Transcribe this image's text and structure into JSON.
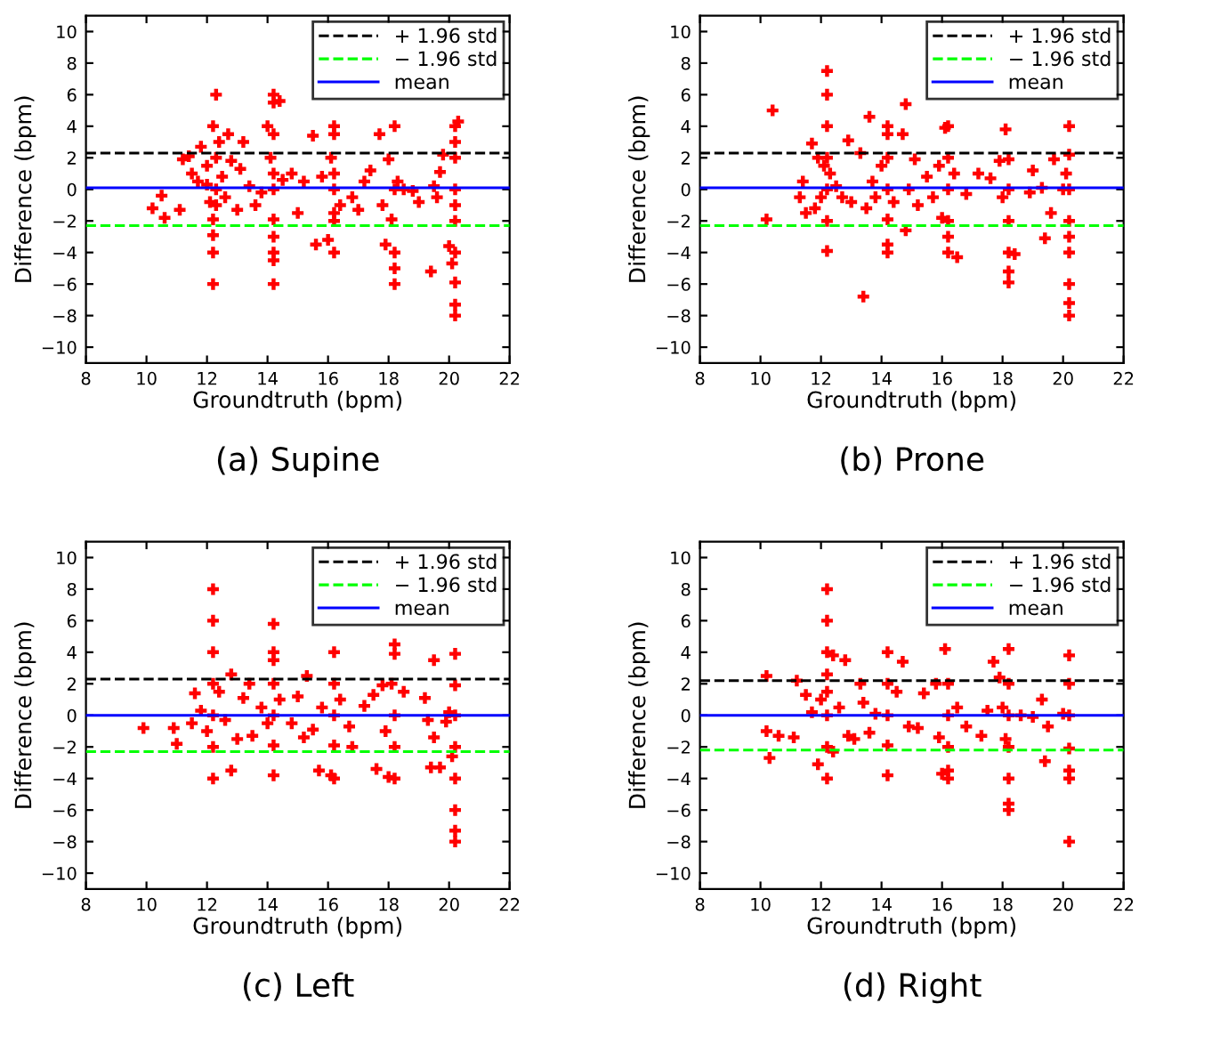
{
  "chart_data": [
    {
      "type": "scatter",
      "title": "(a) Supine",
      "xlabel": "Groundtruth (bpm)",
      "ylabel": "Difference (bpm)",
      "xlim": [
        8,
        22
      ],
      "ylim": [
        -11,
        11
      ],
      "xticks": [
        8,
        10,
        12,
        14,
        16,
        18,
        20,
        22
      ],
      "yticks": [
        -10,
        -8,
        -6,
        -4,
        -2,
        0,
        2,
        4,
        6,
        8,
        10
      ],
      "marker": "cross",
      "legend": "top right",
      "grid": false,
      "ref_lines": [
        {
          "axis": "y",
          "value": 2.3,
          "label": "+ 1.96 std",
          "color": "#000000",
          "line_style": "dashed"
        },
        {
          "axis": "y",
          "value": -2.3,
          "label": "− 1.96 std",
          "color": "#00ff00",
          "line_style": "dashed"
        },
        {
          "axis": "y",
          "value": 0.1,
          "label": "mean",
          "color": "#0000ff",
          "line_style": "solid"
        }
      ],
      "series": [
        {
          "color": "#ff0000",
          "x": [
            10.2,
            10.5,
            10.6,
            11.1,
            11.2,
            11.4,
            11.5,
            11.7,
            11.8,
            12.0,
            12.0,
            12.1,
            12.2,
            12.2,
            12.2,
            12.2,
            12.2,
            12.3,
            12.3,
            12.3,
            12.3,
            12.4,
            12.5,
            12.6,
            12.7,
            12.8,
            13.0,
            13.1,
            13.2,
            13.4,
            13.6,
            13.8,
            14.0,
            14.1,
            14.2,
            14.2,
            14.2,
            14.2,
            14.2,
            14.2,
            14.2,
            14.2,
            14.2,
            14.2,
            14.4,
            14.5,
            14.8,
            15.0,
            15.2,
            15.5,
            15.6,
            15.8,
            16.0,
            16.1,
            16.2,
            16.2,
            16.2,
            16.2,
            16.2,
            16.2,
            16.2,
            16.4,
            16.8,
            17.0,
            17.2,
            17.4,
            17.7,
            17.8,
            17.9,
            18.0,
            18.1,
            18.2,
            18.2,
            18.2,
            18.2,
            18.2,
            18.3,
            18.5,
            18.8,
            19.0,
            19.4,
            19.5,
            19.6,
            19.7,
            19.8,
            20.0,
            20.1,
            20.2,
            20.2,
            20.2,
            20.2,
            20.2,
            20.2,
            20.2,
            20.2,
            20.2,
            20.2,
            20.3
          ],
          "values": [
            -1.2,
            -0.4,
            -1.8,
            -1.3,
            1.9,
            2.1,
            1.0,
            0.5,
            2.7,
            0.3,
            1.5,
            -0.8,
            4.0,
            -1.9,
            -4.0,
            -2.9,
            -6.0,
            6.0,
            2.0,
            0.0,
            -1.0,
            3.0,
            0.8,
            -0.5,
            3.5,
            1.8,
            -1.3,
            1.3,
            3.0,
            0.2,
            -1.0,
            -0.2,
            4.0,
            2.0,
            6.0,
            5.5,
            3.5,
            1.0,
            0.0,
            -1.9,
            -3.0,
            -4.0,
            -4.5,
            -6.0,
            5.6,
            0.6,
            1.0,
            -1.5,
            0.5,
            3.4,
            -3.5,
            0.8,
            -3.2,
            2.0,
            4.0,
            3.5,
            1.0,
            0.0,
            -1.5,
            -2.0,
            -4.0,
            -1.0,
            -0.5,
            -1.3,
            0.5,
            1.2,
            3.5,
            -1.0,
            -3.5,
            1.9,
            -1.9,
            4.0,
            0.0,
            -4.0,
            -5.0,
            -6.0,
            0.5,
            0.0,
            -0.1,
            -0.8,
            -5.2,
            0.2,
            -0.5,
            1.1,
            2.2,
            -3.6,
            -4.7,
            4.0,
            3.0,
            2.0,
            0.0,
            -1.0,
            -2.0,
            -4.0,
            -5.9,
            -7.3,
            -8.0,
            4.3
          ]
        }
      ]
    },
    {
      "type": "scatter",
      "title": "(b) Prone",
      "xlabel": "Groundtruth (bpm)",
      "ylabel": "Difference (bpm)",
      "xlim": [
        8,
        22
      ],
      "ylim": [
        -11,
        11
      ],
      "xticks": [
        8,
        10,
        12,
        14,
        16,
        18,
        20,
        22
      ],
      "yticks": [
        -10,
        -8,
        -6,
        -4,
        -2,
        0,
        2,
        4,
        6,
        8,
        10
      ],
      "marker": "cross",
      "legend": "top right",
      "grid": false,
      "ref_lines": [
        {
          "axis": "y",
          "value": 2.3,
          "label": "+ 1.96 std",
          "color": "#000000",
          "line_style": "dashed"
        },
        {
          "axis": "y",
          "value": -2.3,
          "label": "− 1.96 std",
          "color": "#00ff00",
          "line_style": "dashed"
        },
        {
          "axis": "y",
          "value": 0.1,
          "label": "mean",
          "color": "#0000ff",
          "line_style": "solid"
        }
      ],
      "series": [
        {
          "color": "#ff0000",
          "x": [
            10.2,
            10.4,
            11.3,
            11.4,
            11.5,
            11.7,
            11.8,
            11.9,
            12.0,
            12.1,
            12.2,
            12.2,
            12.2,
            12.2,
            12.2,
            12.2,
            12.2,
            12.3,
            12.5,
            12.7,
            12.9,
            13.0,
            13.3,
            13.4,
            13.5,
            13.6,
            13.7,
            13.8,
            14.0,
            14.2,
            14.2,
            14.2,
            14.2,
            14.2,
            14.2,
            14.2,
            14.4,
            14.7,
            14.8,
            14.8,
            14.9,
            15.1,
            15.2,
            15.5,
            15.7,
            15.9,
            16.0,
            16.1,
            16.2,
            16.2,
            16.2,
            16.2,
            16.2,
            16.2,
            16.4,
            16.5,
            16.8,
            17.2,
            17.6,
            17.9,
            18.0,
            18.1,
            18.2,
            18.2,
            18.2,
            18.2,
            18.2,
            18.2,
            18.4,
            18.9,
            19.0,
            19.3,
            19.4,
            19.6,
            19.7,
            20.0,
            20.1,
            20.2,
            20.2,
            20.2,
            20.2,
            20.2,
            20.2,
            20.2,
            20.2,
            20.2
          ],
          "values": [
            -1.9,
            5.0,
            -0.5,
            0.5,
            -1.5,
            2.9,
            -1.2,
            2.0,
            -0.5,
            1.5,
            7.5,
            6.0,
            4.0,
            2.0,
            0.0,
            -2.0,
            -3.9,
            1.0,
            0.2,
            -0.5,
            3.1,
            -0.8,
            2.3,
            -6.8,
            -1.2,
            4.6,
            0.5,
            -0.5,
            1.5,
            4.0,
            3.5,
            2.0,
            0.0,
            -1.9,
            -3.5,
            -4.0,
            -0.8,
            3.5,
            5.4,
            -2.6,
            0.0,
            1.9,
            -1.0,
            0.8,
            -0.5,
            1.5,
            -1.8,
            3.9,
            4.0,
            2.0,
            0.0,
            -2.0,
            -3.0,
            -4.0,
            1.0,
            -4.3,
            -0.3,
            1.0,
            0.7,
            1.8,
            -0.5,
            3.8,
            1.9,
            0.0,
            -2.0,
            -4.0,
            -5.2,
            -5.9,
            -4.1,
            -0.2,
            1.2,
            0.1,
            -3.1,
            -1.5,
            1.9,
            0.0,
            1.0,
            4.0,
            2.2,
            0.0,
            -2.0,
            -3.0,
            -4.0,
            -6.0,
            -7.2,
            -8.0
          ]
        }
      ]
    },
    {
      "type": "scatter",
      "title": "(c) Left",
      "xlabel": "Groundtruth (bpm)",
      "ylabel": "Difference (bpm)",
      "xlim": [
        8,
        22
      ],
      "ylim": [
        -11,
        11
      ],
      "xticks": [
        8,
        10,
        12,
        14,
        16,
        18,
        20,
        22
      ],
      "yticks": [
        -10,
        -8,
        -6,
        -4,
        -2,
        0,
        2,
        4,
        6,
        8,
        10
      ],
      "marker": "cross",
      "legend": "top right",
      "grid": false,
      "ref_lines": [
        {
          "axis": "y",
          "value": 2.3,
          "label": "+ 1.96 std",
          "color": "#000000",
          "line_style": "dashed"
        },
        {
          "axis": "y",
          "value": -2.3,
          "label": "− 1.96 std",
          "color": "#00ff00",
          "line_style": "dashed"
        },
        {
          "axis": "y",
          "value": 0.0,
          "label": "mean",
          "color": "#0000ff",
          "line_style": "solid"
        }
      ],
      "series": [
        {
          "color": "#ff0000",
          "x": [
            9.9,
            10.9,
            11.0,
            11.5,
            11.6,
            11.8,
            12.0,
            12.2,
            12.2,
            12.2,
            12.2,
            12.2,
            12.2,
            12.2,
            12.4,
            12.6,
            12.8,
            12.8,
            13.0,
            13.2,
            13.4,
            13.5,
            13.8,
            14.0,
            14.2,
            14.2,
            14.2,
            14.2,
            14.2,
            14.2,
            14.2,
            14.4,
            14.8,
            15.0,
            15.2,
            15.3,
            15.5,
            15.7,
            15.8,
            16.1,
            16.2,
            16.2,
            16.2,
            16.2,
            16.2,
            16.4,
            16.7,
            16.8,
            17.2,
            17.5,
            17.6,
            17.8,
            17.9,
            18.0,
            18.1,
            18.2,
            18.2,
            18.2,
            18.2,
            18.2,
            18.5,
            19.2,
            19.3,
            19.4,
            19.5,
            19.5,
            19.7,
            19.9,
            20.0,
            20.1,
            20.2,
            20.2,
            20.2,
            20.2,
            20.2,
            20.2,
            20.2,
            20.2
          ],
          "values": [
            -0.8,
            -0.8,
            -1.8,
            -0.5,
            1.4,
            0.3,
            -1.0,
            8.0,
            6.0,
            4.0,
            2.0,
            0.0,
            -2.0,
            -4.0,
            1.5,
            -0.3,
            2.6,
            -3.5,
            -1.5,
            1.1,
            2.0,
            -1.3,
            0.5,
            -0.5,
            5.8,
            4.0,
            3.5,
            2.0,
            0.0,
            -1.9,
            -3.8,
            1.0,
            -0.5,
            1.2,
            -1.4,
            2.5,
            -0.9,
            -3.5,
            0.5,
            -3.8,
            4.0,
            2.0,
            0.0,
            -1.9,
            -4.0,
            1.0,
            -0.7,
            -2.0,
            0.6,
            1.3,
            -3.4,
            1.9,
            -1.0,
            -3.9,
            2.0,
            4.5,
            3.9,
            0.0,
            -2.0,
            -4.0,
            1.5,
            1.1,
            -0.3,
            -3.3,
            3.5,
            -1.4,
            -3.3,
            -0.4,
            0.2,
            -2.6,
            3.9,
            1.9,
            0.0,
            -2.0,
            -4.0,
            -6.0,
            -7.3,
            -8.0
          ]
        }
      ]
    },
    {
      "type": "scatter",
      "title": "(d) Right",
      "xlabel": "Groundtruth (bpm)",
      "ylabel": "Difference (bpm)",
      "xlim": [
        8,
        22
      ],
      "ylim": [
        -11,
        11
      ],
      "xticks": [
        8,
        10,
        12,
        14,
        16,
        18,
        20,
        22
      ],
      "yticks": [
        -10,
        -8,
        -6,
        -4,
        -2,
        0,
        2,
        4,
        6,
        8,
        10
      ],
      "marker": "cross",
      "legend": "top right",
      "grid": false,
      "ref_lines": [
        {
          "axis": "y",
          "value": 2.2,
          "label": "+ 1.96 std",
          "color": "#000000",
          "line_style": "dashed"
        },
        {
          "axis": "y",
          "value": -2.2,
          "label": "− 1.96 std",
          "color": "#00ff00",
          "line_style": "dashed"
        },
        {
          "axis": "y",
          "value": 0.0,
          "label": "mean",
          "color": "#0000ff",
          "line_style": "solid"
        }
      ],
      "series": [
        {
          "color": "#ff0000",
          "x": [
            10.2,
            10.2,
            10.3,
            10.6,
            11.1,
            11.2,
            11.5,
            11.7,
            11.9,
            12.0,
            12.2,
            12.2,
            12.2,
            12.2,
            12.2,
            12.2,
            12.2,
            12.2,
            12.4,
            12.4,
            12.6,
            12.8,
            12.9,
            13.1,
            13.3,
            13.4,
            13.6,
            13.8,
            14.2,
            14.2,
            14.2,
            14.2,
            14.2,
            14.5,
            14.7,
            14.9,
            15.2,
            15.4,
            15.8,
            15.9,
            16.0,
            16.1,
            16.2,
            16.2,
            16.2,
            16.2,
            16.2,
            16.5,
            16.8,
            17.3,
            17.5,
            17.7,
            17.9,
            18.0,
            18.1,
            18.2,
            18.2,
            18.2,
            18.2,
            18.2,
            18.2,
            18.2,
            18.6,
            19.0,
            19.3,
            19.4,
            19.5,
            20.0,
            20.2,
            20.2,
            20.2,
            20.2,
            20.2,
            20.2,
            20.2
          ],
          "values": [
            2.5,
            -1.0,
            -2.7,
            -1.3,
            -1.4,
            2.2,
            1.3,
            0.2,
            -3.1,
            1.0,
            8.0,
            6.0,
            4.0,
            2.6,
            1.5,
            0.0,
            -2.0,
            -4.0,
            3.8,
            -2.3,
            0.5,
            3.5,
            -1.3,
            -1.5,
            2.0,
            0.8,
            -1.1,
            0.1,
            4.0,
            2.0,
            0.0,
            -1.9,
            -3.8,
            1.5,
            3.4,
            -0.7,
            -0.8,
            1.4,
            2.0,
            -1.4,
            -3.7,
            4.2,
            2.0,
            0.0,
            -2.0,
            -3.5,
            -4.0,
            0.5,
            -0.7,
            -1.3,
            0.3,
            3.4,
            2.4,
            0.5,
            -1.5,
            4.2,
            2.0,
            0.0,
            -2.0,
            -4.0,
            -5.6,
            -6.0,
            0.0,
            -0.1,
            1.0,
            -2.9,
            -0.7,
            0.1,
            3.8,
            2.0,
            0.0,
            -2.1,
            -3.5,
            -4.0,
            -8.0
          ]
        }
      ]
    }
  ]
}
